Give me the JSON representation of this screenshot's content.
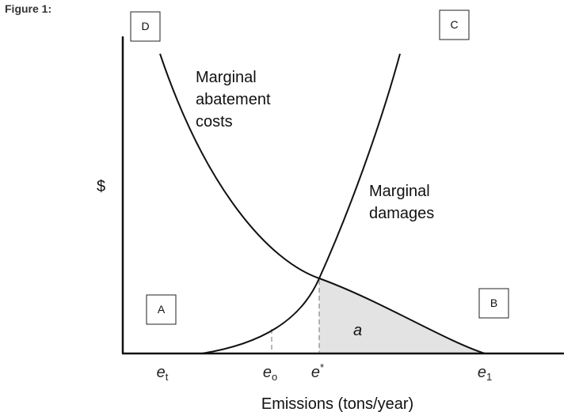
{
  "figure_label": "Figure 1:",
  "boxes": {
    "top_left": "D",
    "top_right": "C",
    "bottom_left": "A",
    "bottom_right": "B"
  },
  "curves": {
    "abatement": {
      "lines": [
        "Marginal",
        "abatement",
        "costs"
      ]
    },
    "damages": {
      "lines": [
        "Marginal",
        "damages"
      ]
    }
  },
  "y_axis_label": "$",
  "area_label": "a",
  "x_ticks": [
    {
      "base": "e",
      "sub": "t"
    },
    {
      "base": "e",
      "sub": "o"
    },
    {
      "base": "e",
      "sup": "*"
    },
    {
      "base": "e",
      "sub": "1"
    }
  ],
  "x_axis_label": "Emissions (tons/year)"
}
